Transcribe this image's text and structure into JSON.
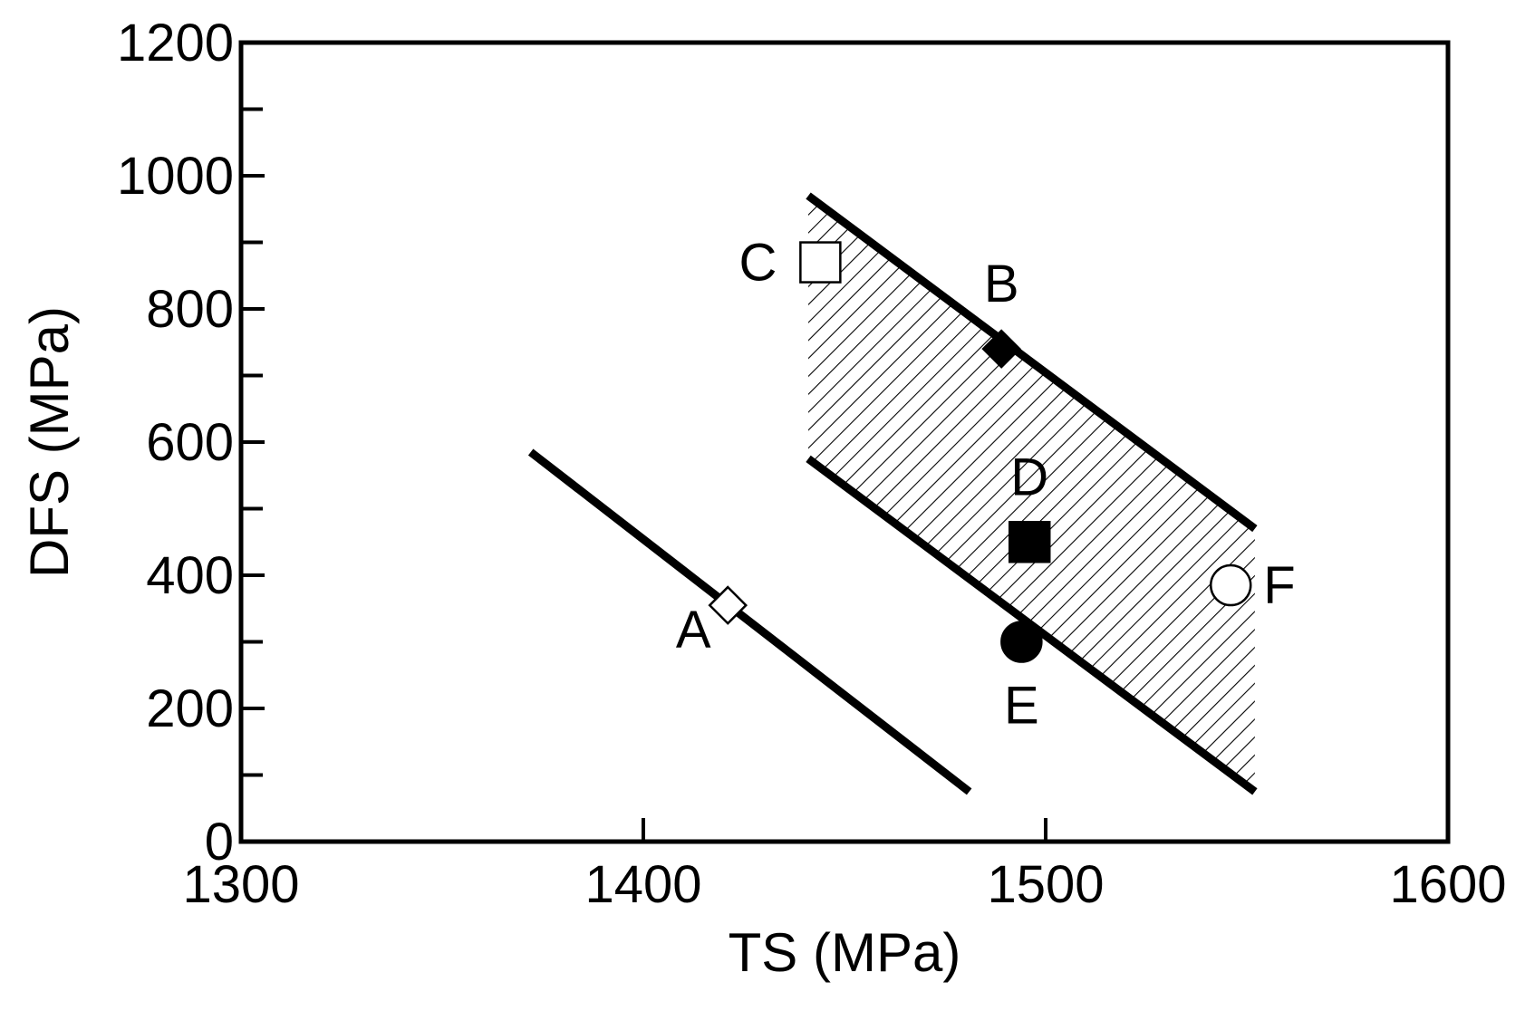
{
  "chart_data": {
    "type": "scatter",
    "xlabel": "TS (MPa)",
    "ylabel": "DFS (MPa)",
    "xlim": [
      1300,
      1600
    ],
    "ylim": [
      0,
      1200
    ],
    "x_ticks": [
      1300,
      1400,
      1500,
      1600
    ],
    "y_ticks": [
      0,
      200,
      400,
      600,
      800,
      1000,
      1200
    ],
    "y_minor_step": 100,
    "x_minor_step": 50,
    "grid": false,
    "points": [
      {
        "label": "A",
        "x": 1421,
        "y": 355,
        "marker": "diamond",
        "fill": "open",
        "label_pos": "lower-left"
      },
      {
        "label": "B",
        "x": 1489,
        "y": 740,
        "marker": "diamond",
        "fill": "filled",
        "label_pos": "above"
      },
      {
        "label": "C",
        "x": 1444,
        "y": 870,
        "marker": "square",
        "fill": "open",
        "label_pos": "left"
      },
      {
        "label": "D",
        "x": 1496,
        "y": 450,
        "marker": "square",
        "fill": "filled",
        "label_pos": "above"
      },
      {
        "label": "E",
        "x": 1494,
        "y": 300,
        "marker": "circle",
        "fill": "filled",
        "label_pos": "below"
      },
      {
        "label": "F",
        "x": 1546,
        "y": 385,
        "marker": "circle",
        "fill": "open",
        "label_pos": "right"
      }
    ],
    "lines": [
      {
        "x": [
          1372,
          1481
        ],
        "y": [
          585,
          75
        ]
      },
      {
        "x": [
          1441,
          1552
        ],
        "y": [
          970,
          470
        ]
      },
      {
        "x": [
          1441,
          1552
        ],
        "y": [
          575,
          75
        ]
      }
    ],
    "hatched_region": {
      "x": [
        1441,
        1552,
        1552,
        1441
      ],
      "y": [
        970,
        470,
        75,
        575
      ]
    }
  }
}
